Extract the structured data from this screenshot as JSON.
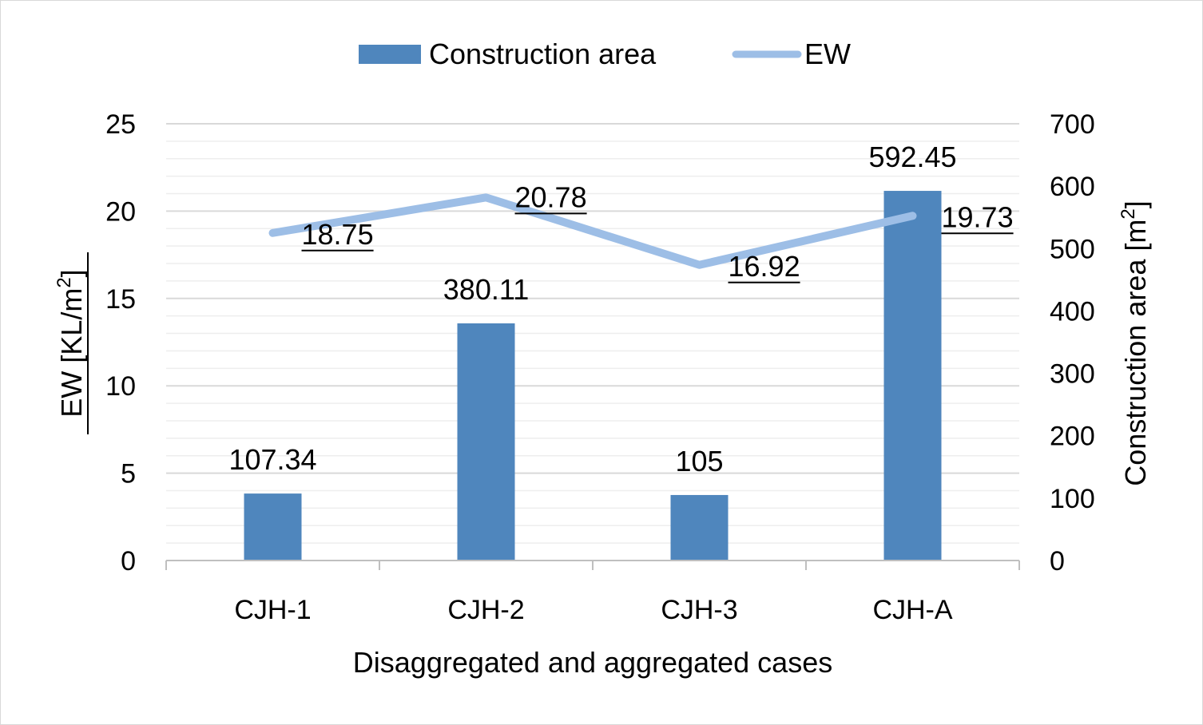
{
  "chart_data": {
    "type": "bar",
    "categories": [
      "CJH-1",
      "CJH-2",
      "CJH-3",
      "CJH-A"
    ],
    "xlabel": "Disaggregated and aggregated cases",
    "series": [
      {
        "name": "Construction area",
        "kind": "bar",
        "axis": "right",
        "color": "#4f86bd",
        "values": [
          107.34,
          380.11,
          105,
          592.45
        ],
        "labels": [
          "107.34",
          "380.11",
          "105",
          "592.45"
        ]
      },
      {
        "name": "EW",
        "kind": "line",
        "axis": "left",
        "color": "#9dbee6",
        "values": [
          18.75,
          20.78,
          16.92,
          19.73
        ],
        "labels": [
          "18.75",
          "20.78",
          "16.92",
          "19.73"
        ]
      }
    ],
    "y_left": {
      "label_main": "EW [KL/m",
      "label_sup": "2",
      "label_end": "]",
      "ylim": [
        0,
        25
      ],
      "ticks": [
        "0",
        "5",
        "10",
        "15",
        "20",
        "25"
      ]
    },
    "y_right": {
      "label_main": "Construction area [m",
      "label_sup": "2",
      "label_end": "]",
      "ylim": [
        0,
        700
      ],
      "ticks": [
        "0",
        "100",
        "200",
        "300",
        "400",
        "500",
        "600",
        "700"
      ]
    },
    "legend_position": "top-center",
    "grid": true
  }
}
